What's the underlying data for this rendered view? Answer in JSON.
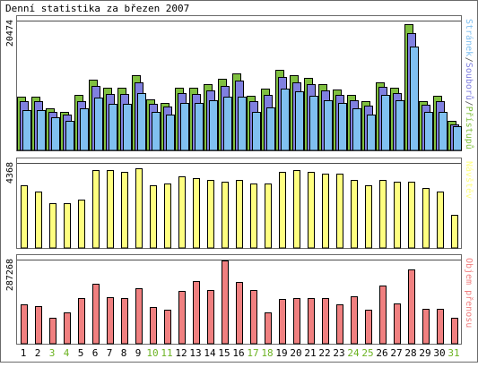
{
  "chart_data": [
    {
      "type": "bar",
      "title": "Denní statistika za březen 2007",
      "panel": "hits-files-pages",
      "y_max_label": "20474",
      "legend": [
        {
          "name": "Přístupů",
          "color": "#80c040"
        },
        {
          "name": "Souborů",
          "color": "#8080e0"
        },
        {
          "name": "Stránek",
          "color": "#80c0f0"
        }
      ],
      "categories": [
        "1",
        "2",
        "3",
        "4",
        "5",
        "6",
        "7",
        "8",
        "9",
        "10",
        "11",
        "12",
        "13",
        "14",
        "15",
        "16",
        "17",
        "18",
        "19",
        "20",
        "21",
        "22",
        "23",
        "24",
        "25",
        "26",
        "27",
        "28",
        "29",
        "30",
        "31"
      ],
      "weekend_days": [
        "3",
        "4",
        "10",
        "11",
        "17",
        "18",
        "24",
        "25",
        "31"
      ],
      "series": [
        {
          "name": "Přístupů",
          "values": [
            8500,
            8500,
            6600,
            6100,
            8800,
            11200,
            9900,
            9900,
            11900,
            8100,
            7500,
            9900,
            9900,
            10400,
            11300,
            12200,
            8600,
            9700,
            12700,
            11800,
            11500,
            10400,
            9600,
            8800,
            7700,
            10800,
            9900,
            19900,
            7800,
            8600,
            4600
          ]
        },
        {
          "name": "Souborů",
          "values": [
            7700,
            7700,
            6100,
            5600,
            7800,
            10100,
            8900,
            8900,
            10800,
            7400,
            6900,
            9000,
            8900,
            9400,
            10200,
            11000,
            7800,
            8800,
            11600,
            10800,
            10500,
            9400,
            8700,
            7900,
            7100,
            10000,
            9100,
            18500,
            7200,
            7800,
            4100
          ]
        },
        {
          "name": "Stránek",
          "values": [
            6300,
            6300,
            5200,
            4700,
            6600,
            8400,
            7400,
            7400,
            9000,
            6100,
            5700,
            7500,
            7500,
            7900,
            8500,
            8500,
            6100,
            6800,
            9800,
            9300,
            8600,
            7900,
            7500,
            6700,
            5700,
            8800,
            7900,
            16400,
            6100,
            6100,
            3800
          ]
        }
      ]
    },
    {
      "type": "bar",
      "panel": "visits",
      "y_max_label": "4368",
      "legend": [
        {
          "name": "Návštěv",
          "color": "#ffff80"
        }
      ],
      "categories": [
        "1",
        "2",
        "3",
        "4",
        "5",
        "6",
        "7",
        "8",
        "9",
        "10",
        "11",
        "12",
        "13",
        "14",
        "15",
        "16",
        "17",
        "18",
        "19",
        "20",
        "21",
        "22",
        "23",
        "24",
        "25",
        "26",
        "27",
        "28",
        "29",
        "30",
        "31"
      ],
      "series": [
        {
          "name": "Návštěv",
          "values": [
            3200,
            2900,
            2300,
            2300,
            2500,
            4000,
            4000,
            3900,
            4100,
            3200,
            3300,
            3700,
            3600,
            3500,
            3400,
            3500,
            3300,
            3300,
            3900,
            4000,
            3900,
            3800,
            3800,
            3500,
            3200,
            3500,
            3400,
            3400,
            3100,
            2900,
            1700
          ]
        }
      ]
    },
    {
      "type": "bar",
      "panel": "kb",
      "y_max_label": "287268",
      "legend": [
        {
          "name": "Objem přenosu",
          "color": "#f08080"
        }
      ],
      "categories": [
        "1",
        "2",
        "3",
        "4",
        "5",
        "6",
        "7",
        "8",
        "9",
        "10",
        "11",
        "12",
        "13",
        "14",
        "15",
        "16",
        "17",
        "18",
        "19",
        "20",
        "21",
        "22",
        "23",
        "24",
        "25",
        "26",
        "27",
        "28",
        "29",
        "30",
        "31"
      ],
      "series": [
        {
          "name": "Objem přenosu",
          "values": [
            135000,
            128000,
            90000,
            107000,
            157000,
            205000,
            160000,
            157000,
            190000,
            125000,
            116000,
            180000,
            215000,
            183000,
            283000,
            210000,
            184000,
            108000,
            154000,
            157000,
            157000,
            155000,
            133000,
            162000,
            115000,
            198000,
            137000,
            255000,
            120000,
            118000,
            88000
          ]
        }
      ]
    }
  ],
  "colors": {
    "border": "#6a6a6a",
    "grid": "#4a4a4a",
    "weekday_label": "#000000",
    "weekend_label": "#6bb321"
  }
}
